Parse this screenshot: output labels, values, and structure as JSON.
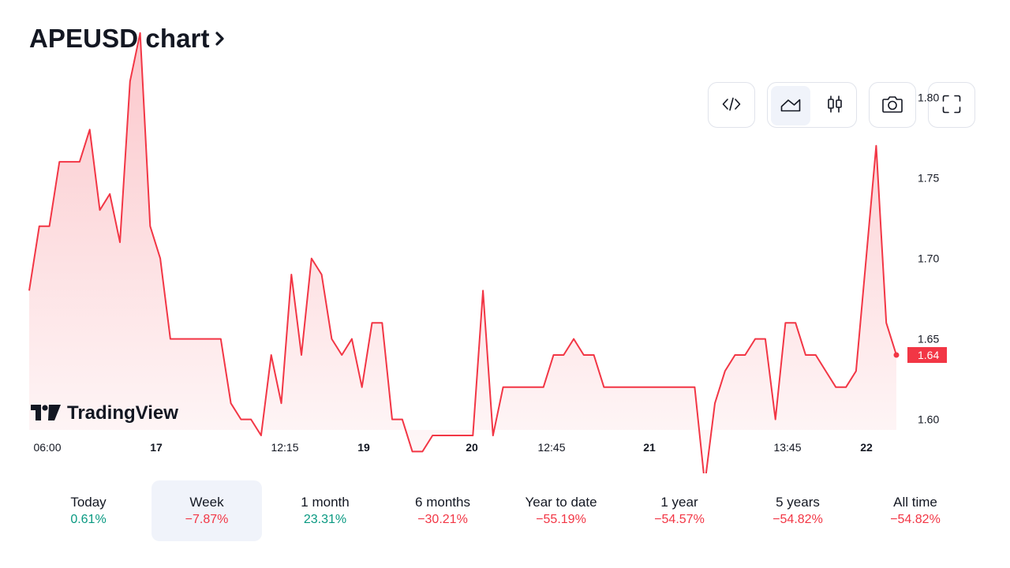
{
  "header": {
    "title": "APEUSD chart"
  },
  "toolbar": {
    "buttons": [
      {
        "name": "embed-code-button",
        "icon": "code-icon",
        "active": false
      },
      {
        "name": "area-chart-button",
        "icon": "area-chart-icon",
        "active": true
      },
      {
        "name": "candles-chart-button",
        "icon": "candles-icon",
        "active": false
      },
      {
        "name": "snapshot-button",
        "icon": "camera-icon",
        "active": false
      },
      {
        "name": "fullscreen-button",
        "icon": "fullscreen-icon",
        "active": false
      }
    ]
  },
  "logo": {
    "text": "TradingView"
  },
  "colors": {
    "line": "#f23645",
    "fill_top": "#f23645",
    "positive": "#089981",
    "negative": "#f23645",
    "price_label_bg": "#f23645"
  },
  "chart_data": {
    "type": "area",
    "series_price": [
      1.68,
      1.72,
      1.72,
      1.76,
      1.76,
      1.76,
      1.78,
      1.73,
      1.74,
      1.71,
      1.81,
      1.84,
      1.72,
      1.7,
      1.65,
      1.65,
      1.65,
      1.65,
      1.65,
      1.65,
      1.61,
      1.6,
      1.6,
      1.59,
      1.64,
      1.61,
      1.69,
      1.64,
      1.7,
      1.69,
      1.65,
      1.64,
      1.65,
      1.62,
      1.66,
      1.66,
      1.6,
      1.6,
      1.58,
      1.58,
      1.59,
      1.59,
      1.59,
      1.59,
      1.59,
      1.68,
      1.59,
      1.62,
      1.62,
      1.62,
      1.62,
      1.62,
      1.64,
      1.64,
      1.65,
      1.64,
      1.64,
      1.62,
      1.62,
      1.62,
      1.62,
      1.62,
      1.62,
      1.62,
      1.62,
      1.62,
      1.62,
      1.56,
      1.61,
      1.63,
      1.64,
      1.64,
      1.65,
      1.65,
      1.6,
      1.66,
      1.66,
      1.64,
      1.64,
      1.63,
      1.62,
      1.62,
      1.63,
      1.7,
      1.77,
      1.66,
      1.64
    ],
    "x_tick_labels": [
      {
        "label": "06:00",
        "bold": false
      },
      {
        "label": "17",
        "bold": true
      },
      {
        "label": "12:15",
        "bold": false
      },
      {
        "label": "19",
        "bold": true
      },
      {
        "label": "20",
        "bold": true
      },
      {
        "label": "12:45",
        "bold": false
      },
      {
        "label": "21",
        "bold": true
      },
      {
        "label": "13:45",
        "bold": false
      },
      {
        "label": "22",
        "bold": true
      }
    ],
    "y_ticks": [
      1.6,
      1.65,
      1.7,
      1.75,
      1.8
    ],
    "y_tick_labels": [
      "1.60",
      "1.65",
      "1.70",
      "1.75",
      "1.80"
    ],
    "ylim": [
      1.5665,
      1.8605
    ],
    "last_price": 1.64,
    "last_price_label": "1.64",
    "grid": false
  },
  "periods": [
    {
      "label": "Today",
      "value": "0.61%",
      "trend": "pos",
      "active": false
    },
    {
      "label": "Week",
      "value": "−7.87%",
      "trend": "neg",
      "active": true
    },
    {
      "label": "1 month",
      "value": "23.31%",
      "trend": "pos",
      "active": false
    },
    {
      "label": "6 months",
      "value": "−30.21%",
      "trend": "neg",
      "active": false
    },
    {
      "label": "Year to date",
      "value": "−55.19%",
      "trend": "neg",
      "active": false
    },
    {
      "label": "1 year",
      "value": "−54.57%",
      "trend": "neg",
      "active": false
    },
    {
      "label": "5 years",
      "value": "−54.82%",
      "trend": "neg",
      "active": false
    },
    {
      "label": "All time",
      "value": "−54.82%",
      "trend": "neg",
      "active": false
    }
  ]
}
